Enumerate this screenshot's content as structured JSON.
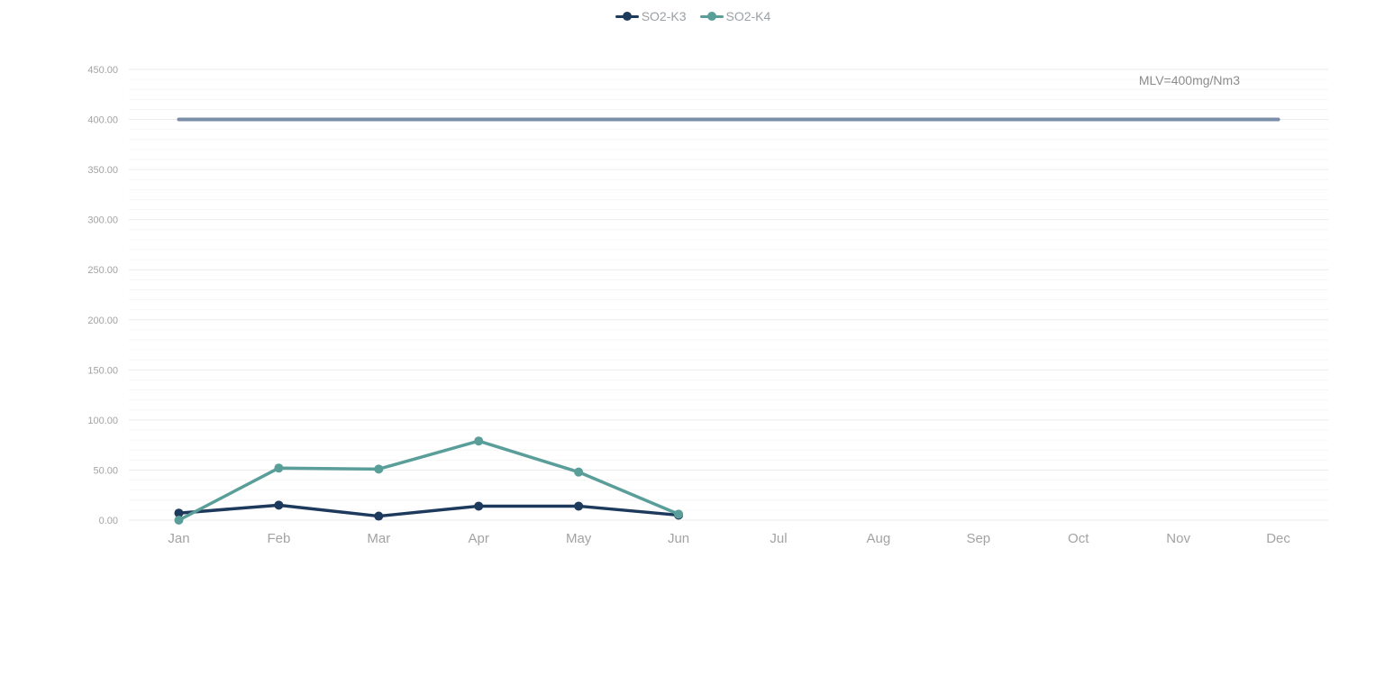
{
  "chart_data": {
    "type": "line",
    "categories": [
      "Jan",
      "Feb",
      "Mar",
      "Apr",
      "May",
      "Jun",
      "Jul",
      "Aug",
      "Sep",
      "Oct",
      "Nov",
      "Dec"
    ],
    "series": [
      {
        "name": "SO2-K3",
        "color": "#1d3a5c",
        "values": [
          7,
          15,
          4,
          14,
          14,
          5,
          null,
          null,
          null,
          null,
          null,
          null
        ]
      },
      {
        "name": "SO2-K4",
        "color": "#5a9e9a",
        "values": [
          0,
          52,
          51,
          79,
          48,
          6,
          null,
          null,
          null,
          null,
          null,
          null
        ]
      }
    ],
    "limit_line": {
      "value": 400,
      "color": "#7b8ea8",
      "label": "MLV=400mg/Nm3"
    },
    "yticks": [
      "0.00",
      "50.00",
      "100.00",
      "150.00",
      "200.00",
      "250.00",
      "300.00",
      "350.00",
      "400.00",
      "450.00"
    ],
    "ylim": [
      0,
      450
    ],
    "ystep": 50,
    "minor_divisions": 5,
    "grid": true,
    "legend_position": "top-center"
  }
}
